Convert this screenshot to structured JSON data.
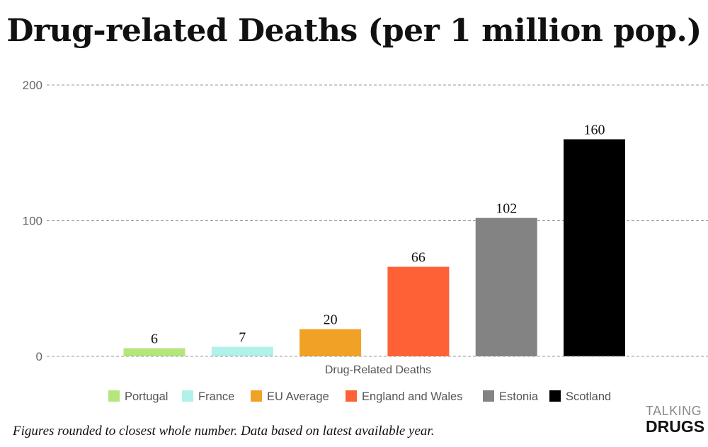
{
  "chart_data": {
    "type": "bar",
    "title": "Drug-related Deaths (per 1 million pop.)",
    "xlabel": "Drug-Related Deaths",
    "ylabel": "",
    "ylim": [
      0,
      200
    ],
    "yticks": [
      0,
      100,
      200
    ],
    "grid": true,
    "legend_position": "bottom",
    "categories": [
      "Portugal",
      "France",
      "EU Average",
      "England and Wales",
      "Estonia",
      "Scotland"
    ],
    "values": [
      6,
      7,
      20,
      66,
      102,
      160
    ],
    "colors": [
      "#b5e67c",
      "#b0f2ea",
      "#f2a127",
      "#fd6135",
      "#838383",
      "#000000"
    ]
  },
  "footnote": "Figures rounded to closest whole number. Data based on latest available year.",
  "brand": {
    "top": "TALKING",
    "bottom": "DRUGS"
  }
}
